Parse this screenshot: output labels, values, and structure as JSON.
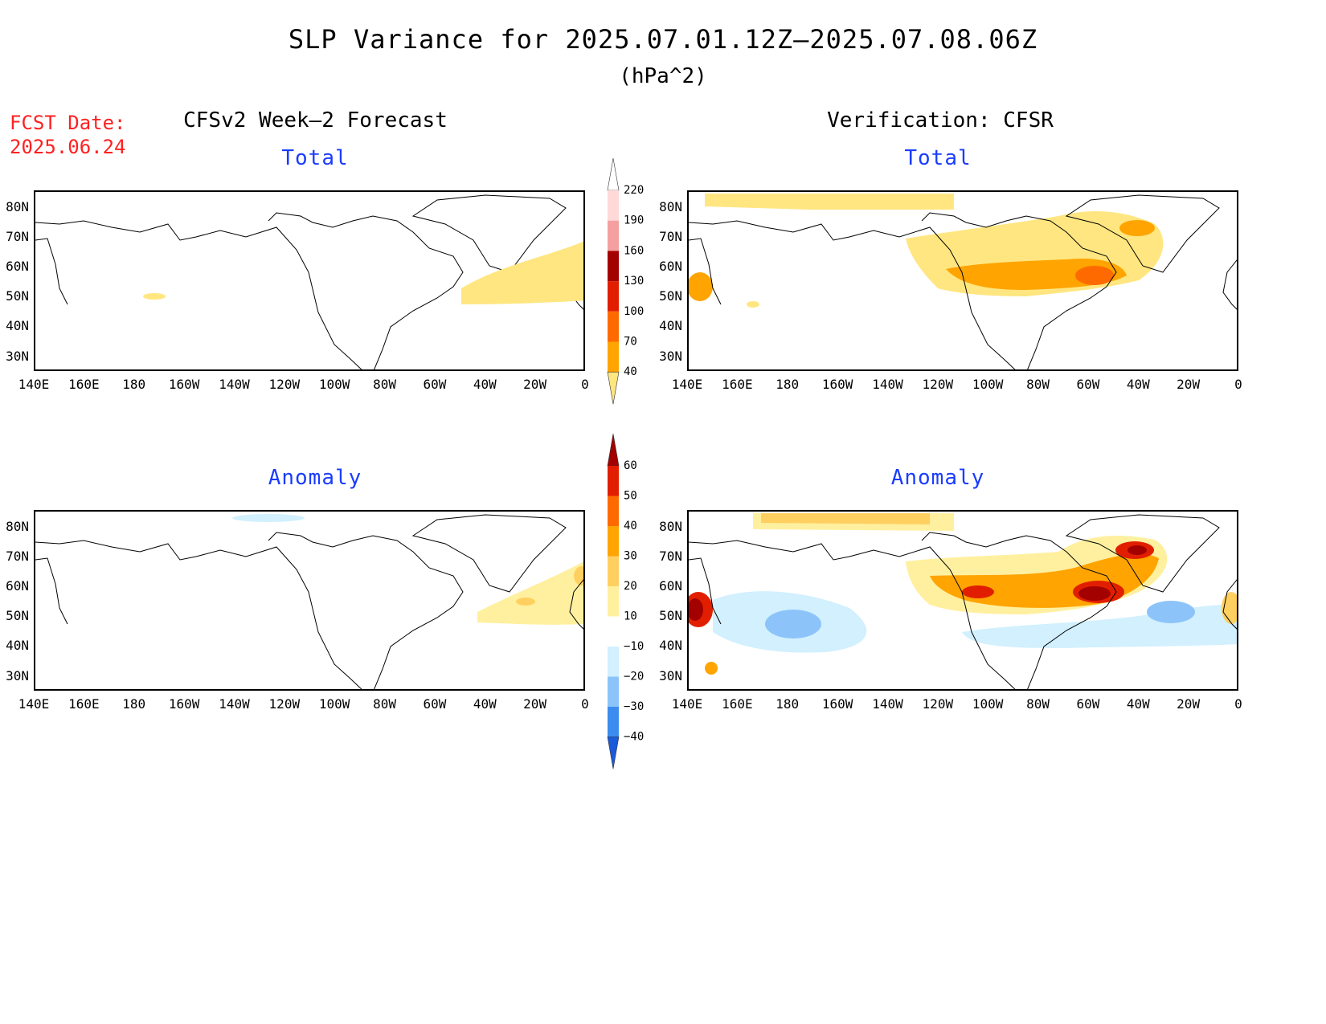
{
  "figure": {
    "title": "SLP Variance for 2025.07.01.12Z–2025.07.08.06Z",
    "units": "(hPa^2)",
    "fcst_date_label": "FCST Date:",
    "fcst_date": "2025.06.24",
    "left_heading": "CFSv2 Week–2 Forecast",
    "right_heading": "Verification: CFSR"
  },
  "panels": {
    "forecast_total": {
      "title": "Total"
    },
    "verification_total": {
      "title": "Total"
    },
    "forecast_anomaly": {
      "title": "Anomaly"
    },
    "verification_anomaly": {
      "title": "Anomaly"
    }
  },
  "axes": {
    "lat_labels": [
      "80N",
      "70N",
      "60N",
      "50N",
      "40N",
      "30N"
    ],
    "lon_labels": [
      "140E",
      "160E",
      "180",
      "160W",
      "140W",
      "120W",
      "100W",
      "80W",
      "60W",
      "40W",
      "20W",
      "0"
    ]
  },
  "colorbars": {
    "total": {
      "levels": [
        "40",
        "70",
        "100",
        "130",
        "160",
        "190",
        "220"
      ],
      "colors": [
        "#ffe680",
        "#ffa400",
        "#ff6a00",
        "#e11f00",
        "#a30000",
        "#f4a0a0",
        "#ffd8d8",
        "#ffffff"
      ]
    },
    "anomaly": {
      "levels": [
        "−40",
        "−30",
        "−20",
        "−10",
        "10",
        "20",
        "30",
        "40",
        "50",
        "60"
      ],
      "colors": [
        "#1a5adb",
        "#3c8cf0",
        "#8cc4fa",
        "#d2f0fe",
        "#ffffff",
        "#fff0a0",
        "#ffd060",
        "#ffa400",
        "#ff6a00",
        "#e11f00",
        "#a30000"
      ]
    }
  }
}
